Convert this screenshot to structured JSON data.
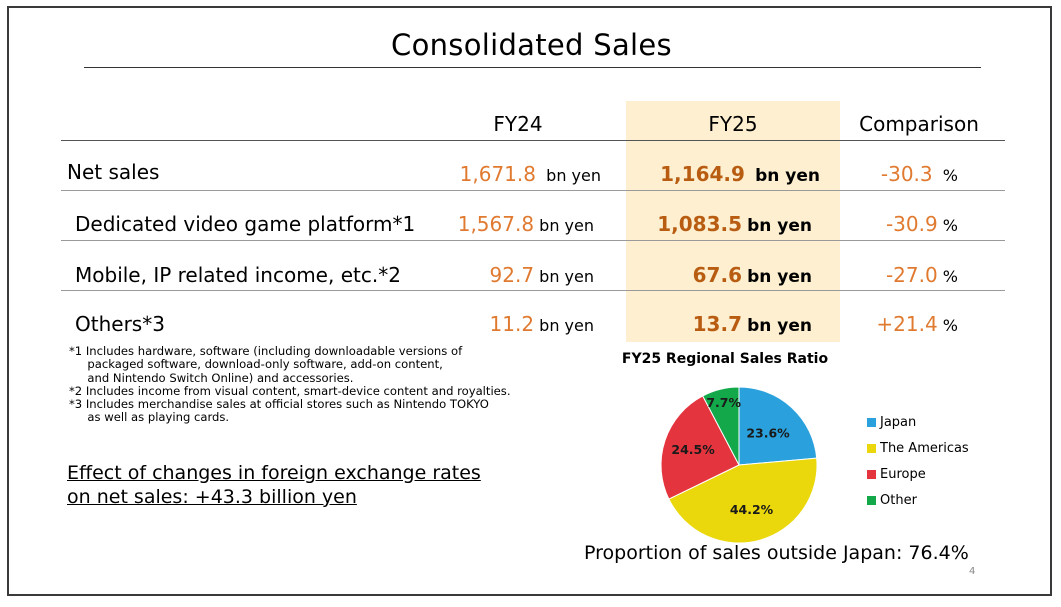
{
  "title": "Consolidated Sales",
  "columns": {
    "fy24": "FY24",
    "fy25": "FY25",
    "comparison": "Comparison"
  },
  "rows": [
    {
      "label": "Net sales",
      "fy24": "1,671.8",
      "fy24_unit": "bn yen",
      "fy25": "1,164.9",
      "fy25_unit": "bn yen",
      "comparison": "-30.3",
      "comparison_unit": "%"
    },
    {
      "label": "Dedicated video game platform*1",
      "fy24": "1,567.8",
      "fy24_unit": "bn yen",
      "fy25": "1,083.5",
      "fy25_unit": "bn yen",
      "comparison": "-30.9",
      "comparison_unit": "%"
    },
    {
      "label": "Mobile, IP related income, etc.*2",
      "fy24": "92.7",
      "fy24_unit": "bn yen",
      "fy25": "67.6",
      "fy25_unit": "bn yen",
      "comparison": "-27.0",
      "comparison_unit": "%"
    },
    {
      "label": "Others*3",
      "fy24": "11.2",
      "fy24_unit": "bn yen",
      "fy25": "13.7",
      "fy25_unit": "bn yen",
      "comparison": "+21.4",
      "comparison_unit": "%"
    }
  ],
  "notes": [
    "*1 Includes hardware, software (including downloadable versions of",
    "     packaged software, download-only software, add-on content,",
    "     and Nintendo Switch Online) and accessories.",
    "*2 Includes income from visual content, smart-device content and royalties.",
    "*3 Includes merchandise sales at official stores such as Nintendo TOKYO",
    "     as well as playing cards."
  ],
  "fx_effect": {
    "line1": "Effect of changes in foreign exchange rates",
    "line2": "on net sales: +43.3 billion yen"
  },
  "chart_data": {
    "type": "pie",
    "title": "FY25 Regional Sales Ratio",
    "categories": [
      "Japan",
      "The Americas",
      "Europe",
      "Other"
    ],
    "values": [
      23.6,
      44.2,
      24.5,
      7.7
    ],
    "labels": [
      "23.6%",
      "44.2%",
      "24.5%",
      "7.7%"
    ],
    "colors": [
      "#2aa1dc",
      "#ead80c",
      "#e4343e",
      "#13a84a"
    ],
    "start_angle_deg": 0,
    "direction": "clockwise",
    "legend_position": "right"
  },
  "outside_japan": "Proportion of sales outside Japan: 76.4%",
  "page_number": "4"
}
